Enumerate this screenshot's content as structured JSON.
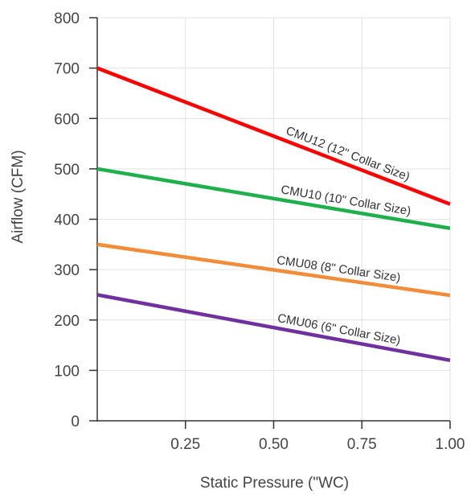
{
  "chart_data": {
    "type": "line",
    "title": "",
    "xlabel": "Static Pressure (\"WC)",
    "ylabel": "Airflow (CFM)",
    "xlim": [
      0,
      1.0
    ],
    "ylim": [
      0,
      800
    ],
    "x_ticks": [
      0.25,
      0.5,
      0.75,
      1.0
    ],
    "x_tick_labels": [
      "0.25",
      "0.50",
      "0.75",
      "1.00"
    ],
    "y_ticks": [
      0,
      100,
      200,
      300,
      400,
      500,
      600,
      700,
      800
    ],
    "y_tick_labels": [
      "0",
      "100",
      "200",
      "300",
      "400",
      "500",
      "600",
      "700",
      "800"
    ],
    "grid": true,
    "legend": "none",
    "series": [
      {
        "name": "CMU12 (12\" Collar Size)",
        "color": "#ff0000",
        "x": [
          0,
          1.0
        ],
        "y": [
          700,
          430
        ],
        "label_at": 0.7
      },
      {
        "name": "CMU10 (10\" Collar Size)",
        "color": "#1db04b",
        "x": [
          0,
          1.0
        ],
        "y": [
          500,
          382
        ],
        "label_at": 0.7
      },
      {
        "name": "CMU08 (8\" Collar Size)",
        "color": "#f28c38",
        "x": [
          0,
          1.0
        ],
        "y": [
          350,
          249
        ],
        "label_at": 0.68
      },
      {
        "name": "CMU06 (6\" Collar Size)",
        "color": "#7030a0",
        "x": [
          0,
          1.0
        ],
        "y": [
          250,
          120
        ],
        "label_at": 0.68
      }
    ]
  }
}
